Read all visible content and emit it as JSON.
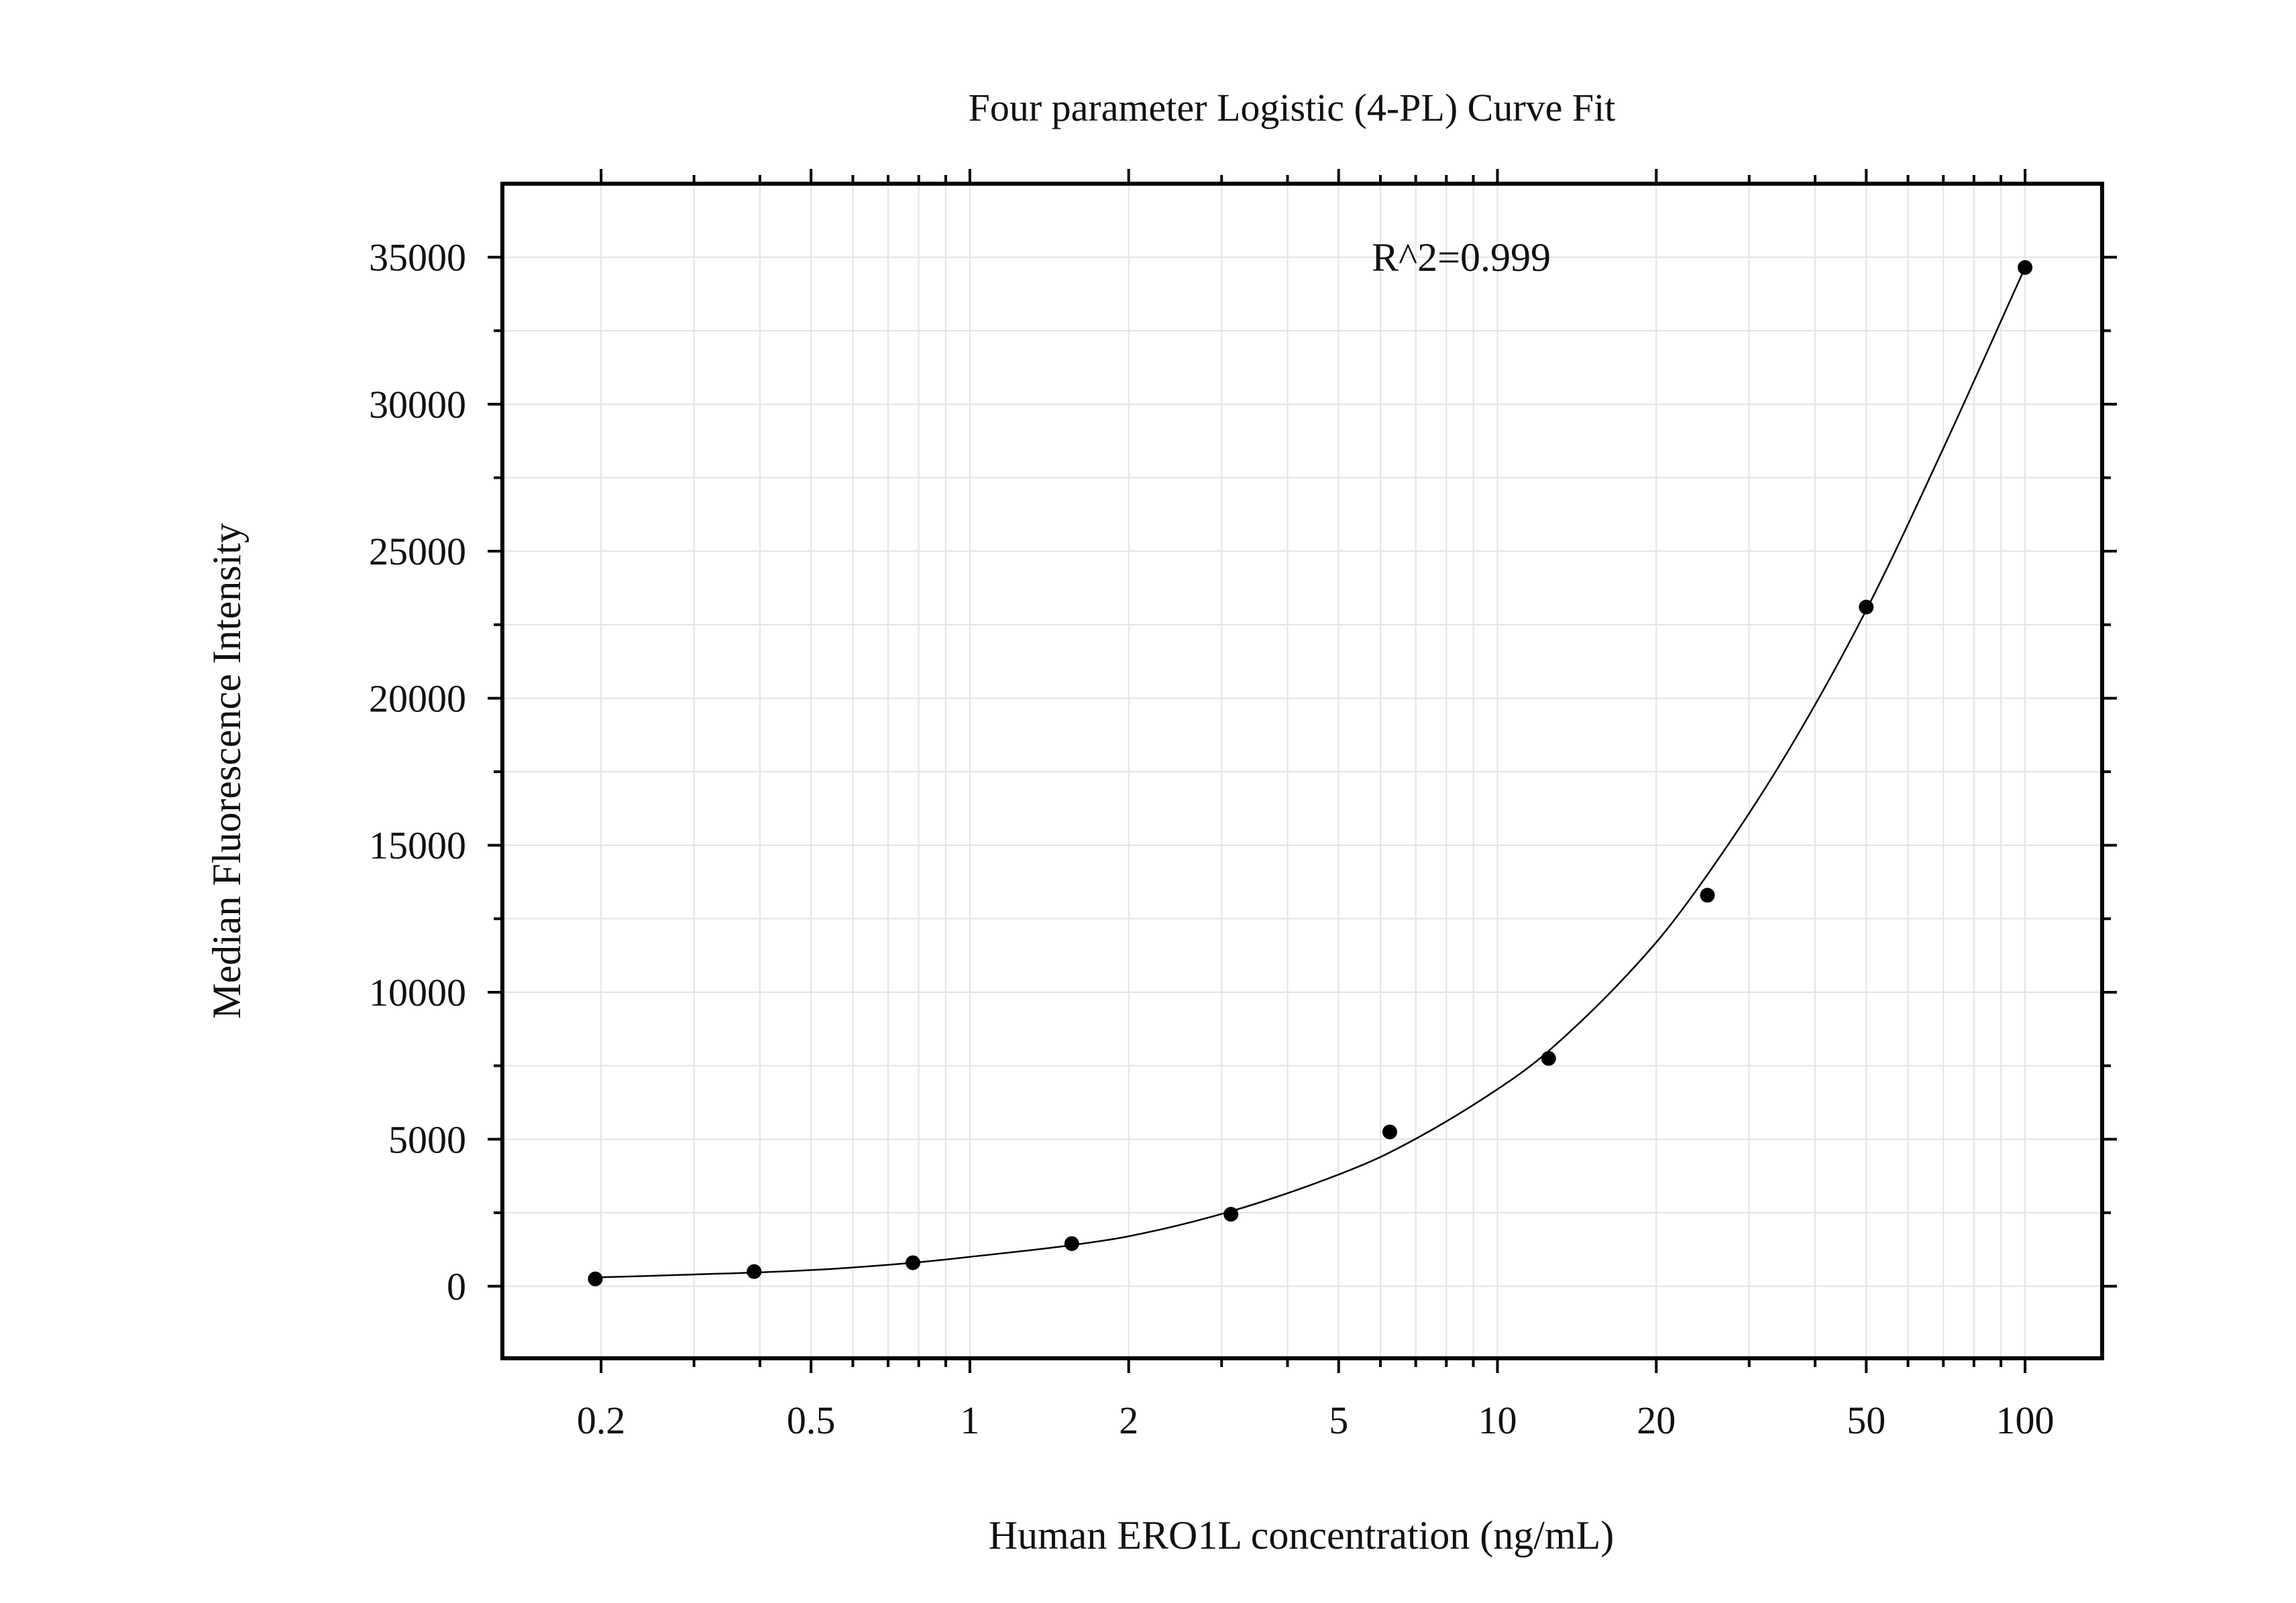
{
  "chart_data": {
    "type": "scatter",
    "title": "Four parameter Logistic (4-PL) Curve Fit",
    "xlabel": "Human ERO1L concentration (ng/mL)",
    "ylabel": "Median Fluorescence Intensity",
    "annotation": "R^2=0.999",
    "x_scale": "log",
    "xlim": [
      0.13,
      140
    ],
    "ylim": [
      -2450,
      37500
    ],
    "x_ticks": [
      0.2,
      0.5,
      1,
      2,
      5,
      10,
      20,
      50,
      100
    ],
    "x_tick_labels": [
      "0.2",
      "0.5",
      "1",
      "2",
      "5",
      "10",
      "20",
      "50",
      "100"
    ],
    "y_ticks": [
      0,
      5000,
      10000,
      15000,
      20000,
      25000,
      30000,
      35000
    ],
    "y_tick_labels": [
      "0",
      "5000",
      "10000",
      "15000",
      "20000",
      "25000",
      "30000",
      "35000"
    ],
    "grid": true,
    "series": [
      {
        "x": [
          0.195,
          0.39,
          0.78,
          1.56,
          3.125,
          6.25,
          12.5,
          25,
          50,
          100
        ],
        "y": [
          250,
          500,
          800,
          1450,
          2450,
          5250,
          7750,
          13300,
          23100,
          34650
        ]
      }
    ],
    "fit_curve": {
      "x": [
        0.195,
        0.3,
        0.5,
        0.78,
        1,
        1.56,
        2,
        3.125,
        5,
        6.25,
        10,
        12.5,
        20,
        25,
        35,
        50,
        70,
        100
      ],
      "y": [
        300,
        400,
        550,
        800,
        1000,
        1400,
        1700,
        2550,
        3800,
        4550,
        6700,
        8000,
        11700,
        14000,
        18000,
        23000,
        28500,
        34650
      ]
    }
  }
}
